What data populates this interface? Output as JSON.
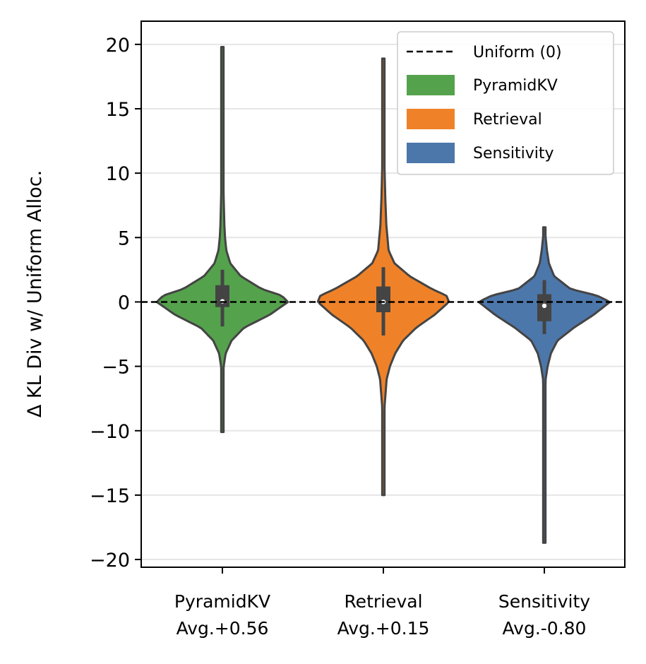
{
  "chart_data": {
    "type": "violin",
    "title": "",
    "xlabel": "",
    "ylabel": "Δ KL Div w/ Uniform Alloc.",
    "ylim": [
      -20.6,
      21.8
    ],
    "yticks": [
      20,
      15,
      10,
      5,
      0,
      -5,
      -10,
      -15,
      -20
    ],
    "ytick_labels": [
      "20",
      "15",
      "10",
      "5",
      "0",
      "−5",
      "−10",
      "−15",
      "−20"
    ],
    "grid": "horizontal",
    "reference_line": {
      "value": 0,
      "style": "dashed",
      "label": "Uniform (0)"
    },
    "legend": {
      "placement": "top-right",
      "entries": [
        "Uniform (0)",
        "PyramidKV",
        "Retrieval",
        "Sensitivity"
      ]
    },
    "series": [
      {
        "name": "PyramidKV",
        "label_line1": "PyramidKV",
        "label_line2": "Avg.+0.56",
        "color": "#55a24d",
        "min": -10.1,
        "max": 19.8,
        "q1": -0.4,
        "q3": 1.3,
        "median": 0.05,
        "whisker_low": -1.9,
        "whisker_high": 2.5,
        "profile": [
          [
            -10.1,
            0.002
          ],
          [
            -8,
            0.004
          ],
          [
            -6,
            0.01
          ],
          [
            -5,
            0.02
          ],
          [
            -4,
            0.05
          ],
          [
            -3,
            0.14
          ],
          [
            -2,
            0.33
          ],
          [
            -1,
            0.72
          ],
          [
            0,
            1.0
          ],
          [
            0.5,
            0.9
          ],
          [
            1,
            0.6
          ],
          [
            2,
            0.28
          ],
          [
            3,
            0.12
          ],
          [
            4,
            0.06
          ],
          [
            5,
            0.04
          ],
          [
            6,
            0.03
          ],
          [
            8,
            0.02
          ],
          [
            10,
            0.012
          ],
          [
            12,
            0.008
          ],
          [
            15,
            0.005
          ],
          [
            18,
            0.003
          ],
          [
            19.8,
            0.002
          ]
        ]
      },
      {
        "name": "Retrieval",
        "label_line1": "Retrieval",
        "label_line2": "Avg.+0.15",
        "color": "#ef8228",
        "min": -15.0,
        "max": 18.9,
        "q1": -0.8,
        "q3": 1.2,
        "median": 0.0,
        "whisker_low": -2.6,
        "whisker_high": 2.7,
        "profile": [
          [
            -15,
            0.002
          ],
          [
            -12,
            0.006
          ],
          [
            -10,
            0.01
          ],
          [
            -8,
            0.02
          ],
          [
            -6,
            0.05
          ],
          [
            -5,
            0.1
          ],
          [
            -4,
            0.18
          ],
          [
            -3,
            0.3
          ],
          [
            -2,
            0.5
          ],
          [
            -1,
            0.78
          ],
          [
            0,
            1.0
          ],
          [
            0.5,
            0.96
          ],
          [
            1,
            0.74
          ],
          [
            2,
            0.4
          ],
          [
            3,
            0.17
          ],
          [
            4,
            0.08
          ],
          [
            6,
            0.045
          ],
          [
            8,
            0.03
          ],
          [
            10,
            0.02
          ],
          [
            12,
            0.012
          ],
          [
            15,
            0.006
          ],
          [
            18.9,
            0.002
          ]
        ]
      },
      {
        "name": "Sensitivity",
        "label_line1": "Sensitivity",
        "label_line2": "Avg.-0.80",
        "color": "#4c77ab",
        "min": -18.7,
        "max": 5.8,
        "q1": -1.5,
        "q3": 0.6,
        "median": -0.3,
        "whisker_low": -2.5,
        "whisker_high": 1.7,
        "profile": [
          [
            -18.7,
            0.002
          ],
          [
            -16,
            0.004
          ],
          [
            -14,
            0.006
          ],
          [
            -12,
            0.008
          ],
          [
            -10,
            0.01
          ],
          [
            -8,
            0.012
          ],
          [
            -6,
            0.02
          ],
          [
            -5,
            0.05
          ],
          [
            -4,
            0.1
          ],
          [
            -3,
            0.2
          ],
          [
            -2,
            0.45
          ],
          [
            -1,
            0.75
          ],
          [
            0,
            1.0
          ],
          [
            0.5,
            0.8
          ],
          [
            1,
            0.4
          ],
          [
            2,
            0.15
          ],
          [
            3,
            0.07
          ],
          [
            4,
            0.04
          ],
          [
            5,
            0.02
          ],
          [
            5.8,
            0.004
          ]
        ]
      }
    ]
  }
}
